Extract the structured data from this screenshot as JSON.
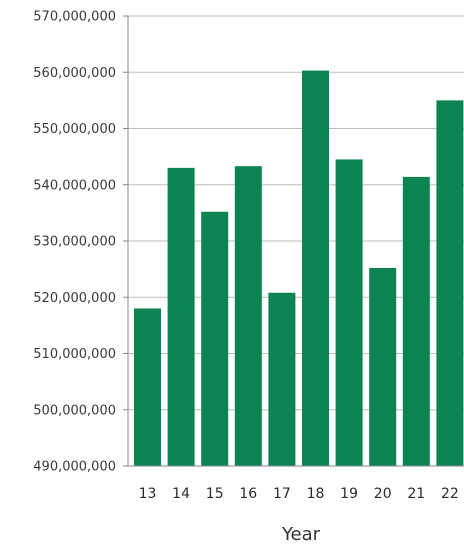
{
  "chart_data": {
    "type": "bar",
    "xlabel": "Year",
    "ylabel": "",
    "categories": [
      "13",
      "14",
      "15",
      "16",
      "17",
      "18",
      "19",
      "20",
      "21",
      "22"
    ],
    "values": [
      518000000,
      543000000,
      535200000,
      543300000,
      520800000,
      560300000,
      544500000,
      525200000,
      541400000,
      555000000
    ],
    "ylim": [
      490000000,
      570000000
    ],
    "yticks": [
      490000000,
      500000000,
      510000000,
      520000000,
      530000000,
      540000000,
      550000000,
      560000000,
      570000000
    ],
    "ytick_labels": [
      "490,000,000",
      "500,000,000",
      "510,000,000",
      "520,000,000",
      "530,000,000",
      "540,000,000",
      "550,000,000",
      "560,000,000",
      "570,000,000"
    ],
    "grid": true,
    "bar_color": "#0b8451",
    "grid_color": "#bdbdbd",
    "axis_color": "#8a8a8a"
  }
}
